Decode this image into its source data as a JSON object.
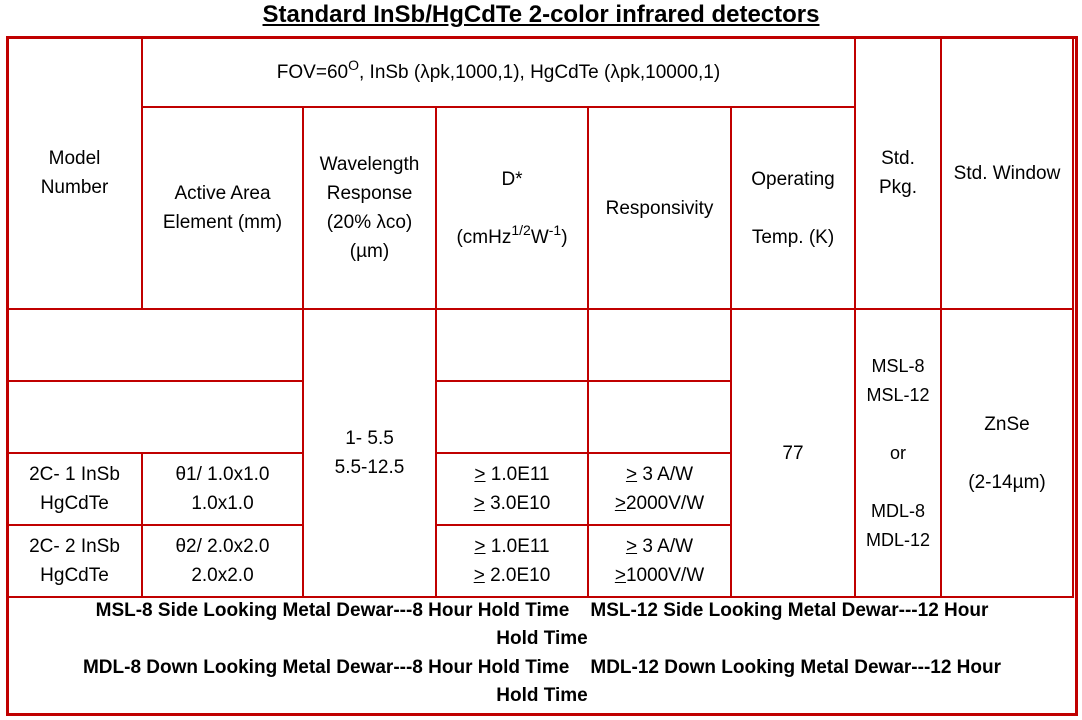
{
  "title": "Standard InSb/HgCdTe 2-color infrared detectors",
  "header": {
    "model_number": [
      "Model",
      "Number"
    ],
    "fov_main": "FOV=60",
    "fov_sup": "O",
    "fov_rest": ", InSb (λpk,1000,1), HgCdTe (λpk,10000,1)",
    "active_area": [
      "Active Area",
      "Element (mm)"
    ],
    "wavelength": [
      "Wavelength",
      "Response",
      "(20% λco)",
      "(µm)"
    ],
    "dstar_label": "D*",
    "dstar_unit_pre": "(cmHz",
    "dstar_sup1": "1/2",
    "dstar_mid": "W",
    "dstar_sup2": "-1",
    "dstar_unit_post": ")",
    "responsivity": "Responsivity",
    "operating": "Operating",
    "operating_temp": "Temp. (K)",
    "std_pkg": [
      "Std.",
      "Pkg."
    ],
    "std_window": "Std. Window"
  },
  "shared": {
    "wavelength": [
      "1- 5.5",
      "5.5-12.5"
    ],
    "temp": "77",
    "pkg": [
      "MSL-8",
      "MSL-12",
      "or",
      "MDL-8",
      "MDL-12"
    ],
    "window": "ZnSe",
    "window_range_pre": "(2-14",
    "window_range_unit": "µm",
    "window_range_post": ")"
  },
  "rows": [
    {
      "model": [
        "2C- 1 InSb",
        "HgCdTe"
      ],
      "area": [
        "θ1/ 1.0x1.0",
        "1.0x1.0"
      ],
      "dstar": [
        "1.0E11",
        "3.0E10"
      ],
      "resp": [
        "3 A/W",
        "2000V/W"
      ],
      "ge": ">"
    },
    {
      "model": [
        "2C- 2 InSb",
        "HgCdTe"
      ],
      "area": [
        "θ2/ 2.0x2.0",
        "2.0x2.0"
      ],
      "dstar": [
        "1.0E11",
        "2.0E10"
      ],
      "resp": [
        "3 A/W",
        "1000V/W"
      ],
      "ge": ">"
    }
  ],
  "footer": {
    "lines": [
      "MSL-8 Side Looking Metal Dewar---8 Hour Hold Time    MSL-12 Side Looking Metal Dewar---12 Hour",
      "Hold Time",
      "MDL-8 Down Looking Metal Dewar---8 Hour Hold Time    MDL-12 Down Looking Metal Dewar---12 Hour",
      "Hold Time"
    ]
  }
}
